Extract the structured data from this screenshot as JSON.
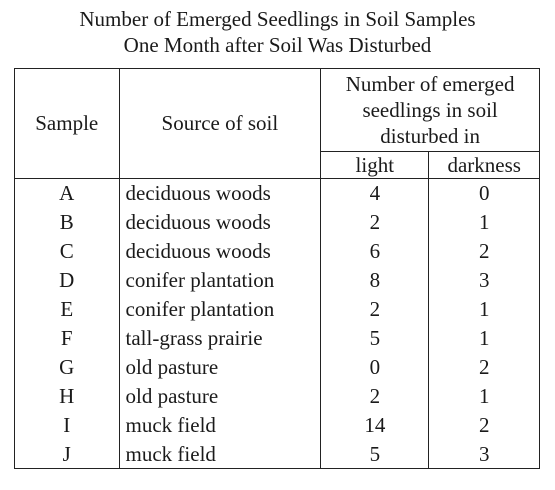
{
  "title_line1": "Number of Emerged Seedlings in Soil Samples",
  "title_line2": "One Month after Soil Was Disturbed",
  "headers": {
    "sample": "Sample",
    "source": "Source of soil",
    "group_line1": "Number of emerged",
    "group_line2": "seedlings in soil",
    "group_line3": "disturbed in",
    "light": "light",
    "darkness": "darkness"
  },
  "rows": [
    {
      "sample": "A",
      "source": "deciduous woods",
      "light": "4",
      "darkness": "0"
    },
    {
      "sample": "B",
      "source": "deciduous woods",
      "light": "2",
      "darkness": "1"
    },
    {
      "sample": "C",
      "source": "deciduous woods",
      "light": "6",
      "darkness": "2"
    },
    {
      "sample": "D",
      "source": "conifer plantation",
      "light": "8",
      "darkness": "3"
    },
    {
      "sample": "E",
      "source": "conifer plantation",
      "light": "2",
      "darkness": "1"
    },
    {
      "sample": "F",
      "source": "tall-grass prairie",
      "light": "5",
      "darkness": "1"
    },
    {
      "sample": "G",
      "source": "old pasture",
      "light": "0",
      "darkness": "2"
    },
    {
      "sample": "H",
      "source": "old pasture",
      "light": "2",
      "darkness": "1"
    },
    {
      "sample": "I",
      "source": "muck field",
      "light": "14",
      "darkness": "2"
    },
    {
      "sample": "J",
      "source": "muck field",
      "light": "5",
      "darkness": "3"
    }
  ]
}
